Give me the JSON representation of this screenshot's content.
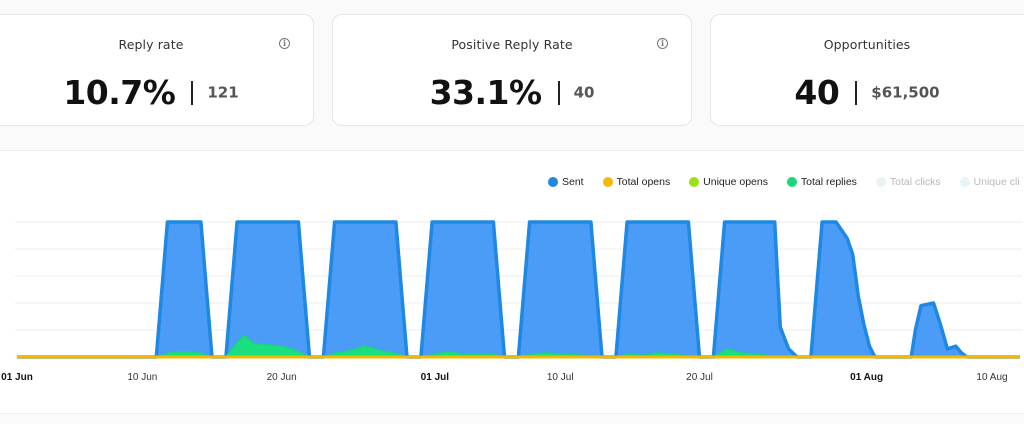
{
  "cards": [
    {
      "label": "Reply rate",
      "value": "10.7%",
      "secondary": "121",
      "has_info": true
    },
    {
      "label": "Positive Reply Rate",
      "value": "33.1%",
      "secondary": "40",
      "has_info": true
    },
    {
      "label": "Opportunities",
      "value": "40",
      "secondary": "$61,500",
      "has_info": false
    }
  ],
  "legend": [
    {
      "label": "Sent",
      "color": "#1e88e5",
      "active": true
    },
    {
      "label": "Total opens",
      "color": "#f5b800",
      "active": true
    },
    {
      "label": "Unique opens",
      "color": "#9be01a",
      "active": true
    },
    {
      "label": "Total replies",
      "color": "#19d67a",
      "active": true
    },
    {
      "label": "Total clicks",
      "color": "#e8f5ee",
      "active": false
    },
    {
      "label": "Unique cli",
      "color": "#e6f4f8",
      "active": false
    }
  ],
  "chart_data": {
    "type": "area",
    "x_range": [
      "2025-06-01",
      "2025-08-12"
    ],
    "x_ticks": [
      {
        "date": "2025-06-01",
        "label": "01 Jun",
        "bold": true
      },
      {
        "date": "2025-06-10",
        "label": "10 Jun",
        "bold": false
      },
      {
        "date": "2025-06-20",
        "label": "20 Jun",
        "bold": false
      },
      {
        "date": "2025-07-01",
        "label": "01 Jul",
        "bold": true
      },
      {
        "date": "2025-07-10",
        "label": "10 Jul",
        "bold": false
      },
      {
        "date": "2025-07-20",
        "label": "20 Jul",
        "bold": false
      },
      {
        "date": "2025-08-01",
        "label": "01 Aug",
        "bold": true
      },
      {
        "date": "2025-08-10",
        "label": "10 Aug",
        "bold": false
      }
    ],
    "y_range": [
      0,
      100
    ],
    "gridlines": 6,
    "series": [
      {
        "name": "Sent",
        "color": "#1e88e5",
        "fill": "#4a9cf6",
        "points": [
          [
            "2025-06-01",
            0
          ],
          [
            "2025-06-11",
            0
          ],
          [
            "2025-06-11.4",
            50
          ],
          [
            "2025-06-11.8",
            100
          ],
          [
            "2025-06-14.2",
            100
          ],
          [
            "2025-06-14.6",
            50
          ],
          [
            "2025-06-15",
            0
          ],
          [
            "2025-06-16",
            0
          ],
          [
            "2025-06-16.4",
            50
          ],
          [
            "2025-06-16.8",
            100
          ],
          [
            "2025-06-21.2",
            100
          ],
          [
            "2025-06-21.6",
            50
          ],
          [
            "2025-06-22",
            0
          ],
          [
            "2025-06-23",
            0
          ],
          [
            "2025-06-23.4",
            50
          ],
          [
            "2025-06-23.8",
            100
          ],
          [
            "2025-06-28.2",
            100
          ],
          [
            "2025-06-28.6",
            50
          ],
          [
            "2025-06-29",
            0
          ],
          [
            "2025-06-30",
            0
          ],
          [
            "2025-06-30.4",
            50
          ],
          [
            "2025-06-30.8",
            100
          ],
          [
            "2025-07-05.2",
            100
          ],
          [
            "2025-07-05.6",
            50
          ],
          [
            "2025-07-06",
            0
          ],
          [
            "2025-07-07",
            0
          ],
          [
            "2025-07-07.4",
            50
          ],
          [
            "2025-07-07.8",
            100
          ],
          [
            "2025-07-12.2",
            100
          ],
          [
            "2025-07-12.6",
            50
          ],
          [
            "2025-07-13",
            0
          ],
          [
            "2025-07-14",
            0
          ],
          [
            "2025-07-14.4",
            50
          ],
          [
            "2025-07-14.8",
            100
          ],
          [
            "2025-07-19.2",
            100
          ],
          [
            "2025-07-19.6",
            50
          ],
          [
            "2025-07-20",
            0
          ],
          [
            "2025-07-21",
            0
          ],
          [
            "2025-07-21.4",
            50
          ],
          [
            "2025-07-21.8",
            100
          ],
          [
            "2025-07-25.4",
            100
          ],
          [
            "2025-07-25.6",
            60
          ],
          [
            "2025-07-25.8",
            22
          ],
          [
            "2025-07-26.4",
            6
          ],
          [
            "2025-07-27",
            0
          ],
          [
            "2025-07-28",
            0
          ],
          [
            "2025-07-28.4",
            50
          ],
          [
            "2025-07-28.8",
            100
          ],
          [
            "2025-07-29.8",
            100
          ],
          [
            "2025-07-30.6",
            88
          ],
          [
            "2025-07-31.0",
            76
          ],
          [
            "2025-07-31.4",
            45
          ],
          [
            "2025-07-31.8",
            24
          ],
          [
            "2025-08-01.2",
            8
          ],
          [
            "2025-08-01.6",
            0
          ],
          [
            "2025-08-04.2",
            0
          ],
          [
            "2025-08-04.5",
            20
          ],
          [
            "2025-08-04.9",
            38
          ],
          [
            "2025-08-05.8",
            40
          ],
          [
            "2025-08-06.3",
            24
          ],
          [
            "2025-08-06.8",
            6
          ],
          [
            "2025-08-07.4",
            8
          ],
          [
            "2025-08-07.8",
            3
          ],
          [
            "2025-08-08.2",
            0
          ],
          [
            "2025-08-12",
            0
          ]
        ]
      },
      {
        "name": "Total replies",
        "color": "#19d67a",
        "fill": "#19e07f",
        "points": [
          [
            "2025-06-01",
            0
          ],
          [
            "2025-06-11",
            0
          ],
          [
            "2025-06-12",
            3
          ],
          [
            "2025-06-13",
            4
          ],
          [
            "2025-06-14",
            3
          ],
          [
            "2025-06-15",
            0
          ],
          [
            "2025-06-16",
            0
          ],
          [
            "2025-06-16.6",
            8
          ],
          [
            "2025-06-17.3",
            16
          ],
          [
            "2025-06-18",
            10
          ],
          [
            "2025-06-19",
            9
          ],
          [
            "2025-06-20",
            8
          ],
          [
            "2025-06-21",
            5
          ],
          [
            "2025-06-22",
            0
          ],
          [
            "2025-06-23",
            0
          ],
          [
            "2025-06-24",
            3
          ],
          [
            "2025-06-25",
            5
          ],
          [
            "2025-06-26",
            8
          ],
          [
            "2025-06-27",
            5
          ],
          [
            "2025-06-28",
            3
          ],
          [
            "2025-06-29",
            0
          ],
          [
            "2025-06-30",
            0
          ],
          [
            "2025-07-01",
            2
          ],
          [
            "2025-07-02",
            4
          ],
          [
            "2025-07-03",
            2
          ],
          [
            "2025-07-05",
            2
          ],
          [
            "2025-07-06",
            0
          ],
          [
            "2025-07-07",
            0
          ],
          [
            "2025-07-08",
            2
          ],
          [
            "2025-07-09",
            3
          ],
          [
            "2025-07-10",
            2
          ],
          [
            "2025-07-12",
            1
          ],
          [
            "2025-07-13",
            0
          ],
          [
            "2025-07-14",
            0
          ],
          [
            "2025-07-15",
            2
          ],
          [
            "2025-07-16",
            1
          ],
          [
            "2025-07-17",
            3
          ],
          [
            "2025-07-19",
            1
          ],
          [
            "2025-07-20",
            0
          ],
          [
            "2025-07-21",
            0
          ],
          [
            "2025-07-22",
            6
          ],
          [
            "2025-07-23",
            3
          ],
          [
            "2025-07-25",
            1
          ],
          [
            "2025-07-26",
            0
          ],
          [
            "2025-07-28",
            0
          ],
          [
            "2025-07-29",
            1
          ],
          [
            "2025-07-31",
            1
          ],
          [
            "2025-08-01",
            0
          ],
          [
            "2025-08-12",
            0
          ]
        ]
      },
      {
        "name": "Total opens",
        "color": "#f5b800",
        "fill": "none",
        "points": [
          [
            "2025-06-01",
            0
          ],
          [
            "2025-08-12",
            0
          ]
        ]
      }
    ]
  }
}
